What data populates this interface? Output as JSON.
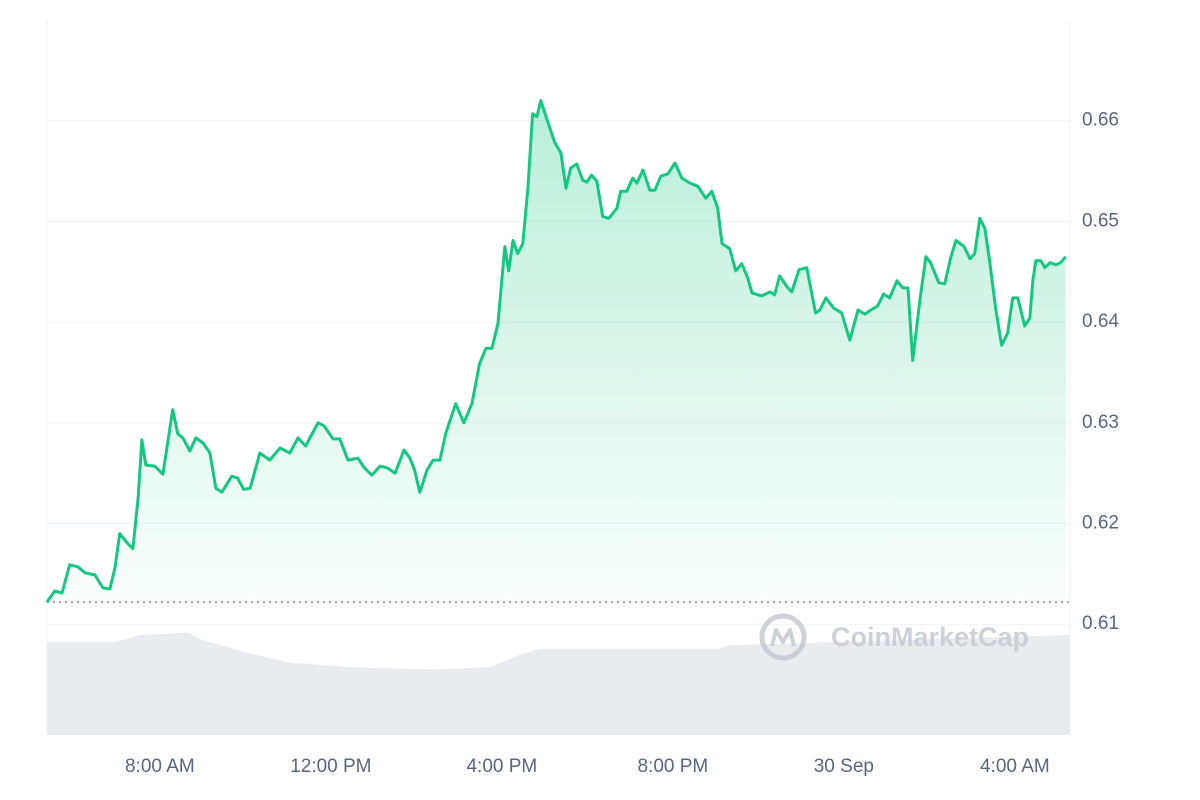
{
  "chart_data": {
    "type": "line",
    "color": "#16c784",
    "x": [
      5.36,
      5.54,
      5.71,
      5.89,
      6.08,
      6.25,
      6.48,
      6.67,
      6.83,
      6.95,
      7.06,
      7.25,
      7.37,
      7.49,
      7.58,
      7.67,
      7.88,
      8.07,
      8.3,
      8.42,
      8.54,
      8.7,
      8.84,
      9.01,
      9.17,
      9.31,
      9.45,
      9.68,
      9.82,
      9.96,
      10.11,
      10.34,
      10.57,
      10.81,
      11.04,
      11.23,
      11.41,
      11.7,
      11.84,
      12.05,
      12.21,
      12.4,
      12.63,
      12.79,
      12.96,
      13.15,
      13.33,
      13.5,
      13.71,
      13.85,
      13.96,
      14.08,
      14.25,
      14.39,
      14.55,
      14.69,
      14.92,
      15.11,
      15.3,
      15.48,
      15.63,
      15.77,
      15.91,
      16.07,
      16.16,
      16.26,
      16.37,
      16.49,
      16.61,
      16.72,
      16.82,
      16.91,
      17.08,
      17.24,
      17.38,
      17.5,
      17.61,
      17.75,
      17.89,
      17.99,
      18.1,
      18.22,
      18.36,
      18.5,
      18.69,
      18.78,
      18.92,
      19.06,
      19.16,
      19.3,
      19.46,
      19.58,
      19.72,
      19.88,
      20.05,
      20.21,
      20.4,
      20.58,
      20.77,
      20.91,
      21.05,
      21.15,
      21.33,
      21.47,
      21.61,
      21.75,
      21.85,
      22.08,
      22.27,
      22.38,
      22.5,
      22.67,
      22.78,
      22.95,
      23.13,
      23.34,
      23.44,
      23.58,
      23.76,
      23.95,
      24.14,
      24.33,
      24.49,
      24.63,
      24.79,
      24.93,
      25.07,
      25.24,
      25.38,
      25.5,
      25.61,
      25.78,
      25.92,
      26.03,
      26.22,
      26.36,
      26.5,
      26.62,
      26.81,
      26.95,
      27.06,
      27.18,
      27.3,
      27.41,
      27.55,
      27.69,
      27.83,
      27.95,
      28.07,
      28.23,
      28.35,
      28.42,
      28.49,
      28.61,
      28.7,
      28.82,
      28.96,
      29.07,
      29.19
    ],
    "values": [
      0.6122,
      0.6133,
      0.6131,
      0.6159,
      0.6157,
      0.6151,
      0.6149,
      0.6136,
      0.6135,
      0.6156,
      0.619,
      0.618,
      0.6175,
      0.6225,
      0.6283,
      0.6258,
      0.6257,
      0.6249,
      0.6313,
      0.6289,
      0.6285,
      0.6272,
      0.6285,
      0.628,
      0.627,
      0.6235,
      0.6231,
      0.6247,
      0.6245,
      0.6234,
      0.6235,
      0.627,
      0.6263,
      0.6275,
      0.627,
      0.6285,
      0.6277,
      0.63,
      0.6297,
      0.6284,
      0.6284,
      0.6263,
      0.6265,
      0.6255,
      0.6248,
      0.6257,
      0.6255,
      0.625,
      0.6273,
      0.6265,
      0.6253,
      0.6231,
      0.6253,
      0.6263,
      0.6263,
      0.629,
      0.6319,
      0.63,
      0.6319,
      0.6359,
      0.6374,
      0.6374,
      0.6399,
      0.6475,
      0.6451,
      0.6481,
      0.6468,
      0.6478,
      0.6533,
      0.6607,
      0.6604,
      0.662,
      0.6598,
      0.6578,
      0.6568,
      0.6533,
      0.6553,
      0.6557,
      0.6541,
      0.6539,
      0.6546,
      0.654,
      0.6505,
      0.6503,
      0.6513,
      0.653,
      0.653,
      0.6543,
      0.6538,
      0.6551,
      0.6531,
      0.6531,
      0.6545,
      0.6547,
      0.6558,
      0.6543,
      0.6538,
      0.6535,
      0.6523,
      0.653,
      0.6513,
      0.6478,
      0.6473,
      0.6451,
      0.6458,
      0.6444,
      0.6429,
      0.6426,
      0.643,
      0.6427,
      0.6446,
      0.6435,
      0.643,
      0.6452,
      0.6454,
      0.6409,
      0.6412,
      0.6424,
      0.6414,
      0.6409,
      0.6382,
      0.6412,
      0.6408,
      0.6412,
      0.6416,
      0.6428,
      0.6424,
      0.6441,
      0.6434,
      0.6434,
      0.6362,
      0.6422,
      0.6465,
      0.6459,
      0.6439,
      0.6438,
      0.6464,
      0.6481,
      0.6475,
      0.6463,
      0.6468,
      0.6503,
      0.6493,
      0.6461,
      0.6414,
      0.6377,
      0.6389,
      0.6424,
      0.6424,
      0.6396,
      0.6404,
      0.6441,
      0.6461,
      0.6461,
      0.6454,
      0.6459,
      0.6457,
      0.6459,
      0.6465
    ],
    "xlim": [
      5.36,
      29.29
    ],
    "xticks": [
      {
        "value": 8,
        "label": "8:00 AM"
      },
      {
        "value": 12,
        "label": "12:00 PM"
      },
      {
        "value": 16,
        "label": "4:00 PM"
      },
      {
        "value": 20,
        "label": "8:00 PM"
      },
      {
        "value": 24,
        "label": "30 Sep"
      },
      {
        "value": 28,
        "label": "4:00 AM"
      }
    ],
    "ylim": [
      0.599,
      0.67
    ],
    "yticks": [
      0.61,
      0.62,
      0.63,
      0.64,
      0.65,
      0.66
    ],
    "grid": true,
    "baseline": 0.6122,
    "volume": {
      "x": [
        5.36,
        6.95,
        7.53,
        8.7,
        8.94,
        10.11,
        11.04,
        12.44,
        14.32,
        15.72,
        16.42,
        16.89,
        21.1,
        21.33,
        29.28
      ],
      "values": [
        81,
        81,
        87,
        89,
        83,
        71,
        63,
        59,
        57,
        59,
        70,
        75,
        75,
        78,
        87
      ],
      "ylim": [
        0,
        100
      ],
      "color": "#e9ebef"
    },
    "watermark": "CoinMarketCap"
  }
}
